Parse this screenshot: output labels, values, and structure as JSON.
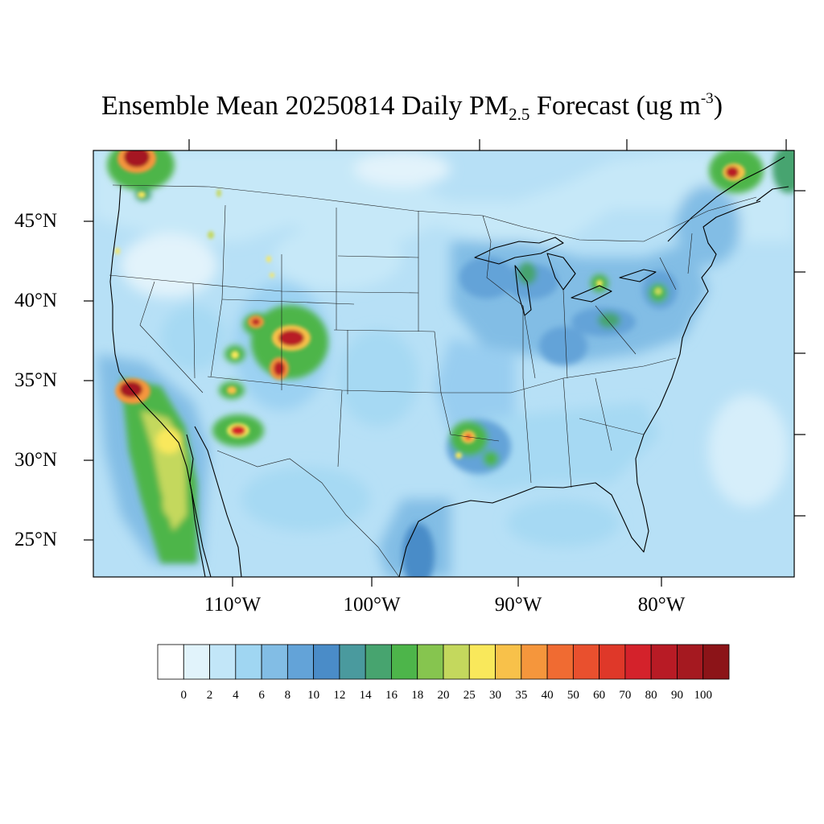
{
  "title": {
    "prefix": "Ensemble Mean 20250814 Daily PM",
    "subscript": "2.5",
    "middle": " Forecast (ug m",
    "superscript": "-3",
    "suffix": ")"
  },
  "map": {
    "region": "Continental United States, northern Mexico, southern Canada",
    "lat_labels": [
      "45°N",
      "40°N",
      "35°N",
      "30°N",
      "25°N"
    ],
    "lon_labels": [
      "110°W",
      "100°W",
      "90°W",
      "80°W"
    ],
    "hotspots": [
      {
        "where": "Southern British Columbia / northern Washington",
        "level": 100
      },
      {
        "where": "Southern California coast",
        "level": 100
      },
      {
        "where": "Western Colorado",
        "level": 100
      },
      {
        "where": "Central Colorado",
        "level": 100
      },
      {
        "where": "Eastern Utah",
        "level": 80
      },
      {
        "where": "Southeast Arizona",
        "level": 90
      },
      {
        "where": "Central Arizona",
        "level": 35
      },
      {
        "where": "Southern Arkansas / northern Louisiana",
        "level": 40
      },
      {
        "where": "Southern Quebec",
        "level": 90
      },
      {
        "where": "Baja California plume",
        "level": 30
      }
    ]
  },
  "colorbar": {
    "levels": [
      "0",
      "2",
      "4",
      "6",
      "8",
      "10",
      "12",
      "14",
      "16",
      "18",
      "20",
      "25",
      "30",
      "35",
      "40",
      "50",
      "60",
      "70",
      "80",
      "90",
      "100"
    ],
    "colors": [
      "#ffffff",
      "#e1f3fb",
      "#c2e6f8",
      "#a0d6f2",
      "#82bde5",
      "#63a3d8",
      "#4a8cc8",
      "#4a9a9e",
      "#47a46f",
      "#4db54a",
      "#86c54f",
      "#c4d85d",
      "#f9e85b",
      "#f8c14a",
      "#f5963c",
      "#f06b32",
      "#e9502e",
      "#df3829",
      "#d4222b",
      "#b81b25",
      "#a51920",
      "#8c1418"
    ]
  }
}
